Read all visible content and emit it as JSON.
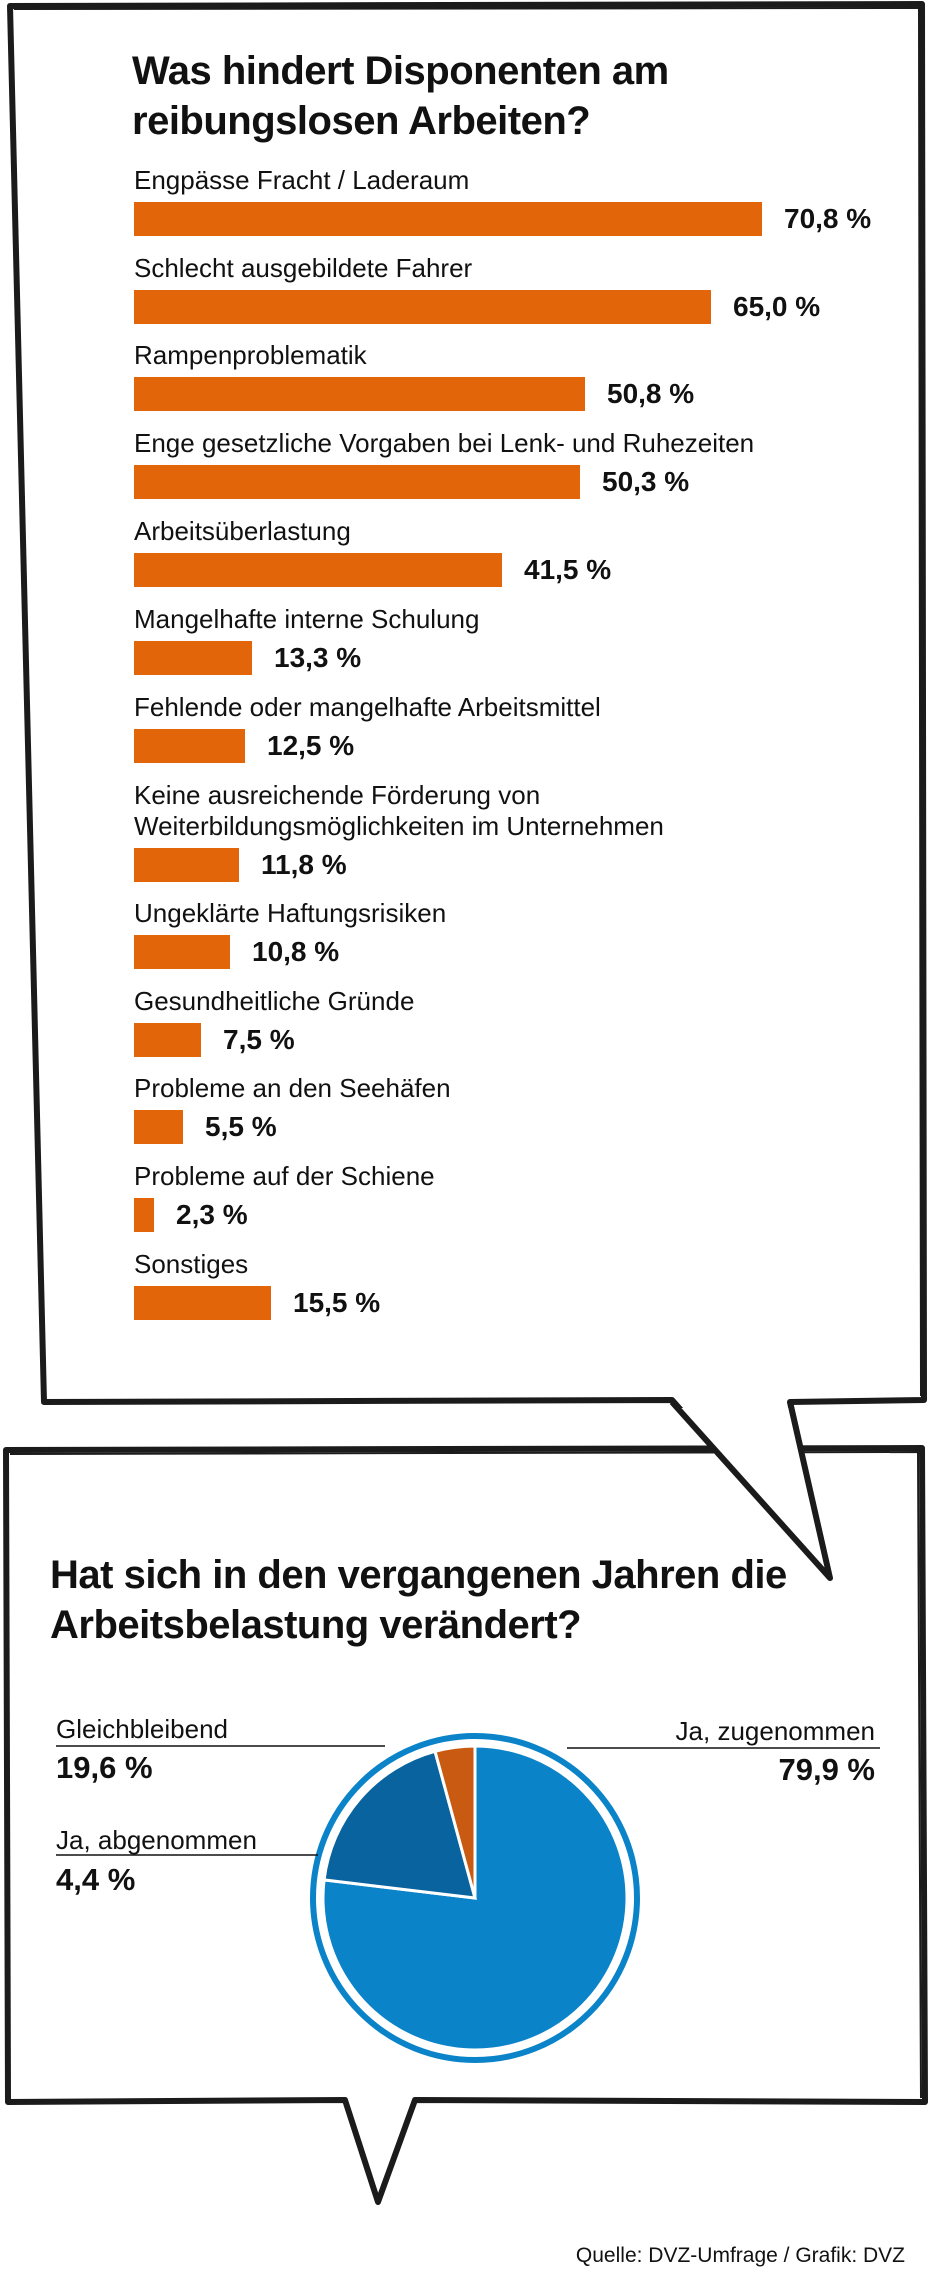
{
  "chart_data": [
    {
      "type": "bar",
      "orientation": "horizontal",
      "title": "Was hindert Disponenten am reibungslosen Arbeiten?",
      "unit": "%",
      "categories": [
        "Engpässe Fracht / Laderaum",
        "Schlecht ausgebildete Fahrer",
        "Rampenproblematik",
        "Enge gesetzliche Vorgaben bei Lenk- und Ruhezeiten",
        "Arbeitsüberlastung",
        "Mangelhafte interne Schulung",
        "Fehlende oder mangelhafte Arbeitsmittel",
        "Keine ausreichende Förderung von Weiterbildungsmöglichkeiten im Unternehmen",
        "Ungeklärte Haftungsrisiken",
        "Gesundheitliche Gründe",
        "Probleme an den Seehäfen",
        "Probleme auf der Schiene",
        "Sonstiges"
      ],
      "values": [
        70.8,
        65.0,
        50.8,
        50.3,
        41.5,
        13.3,
        12.5,
        11.8,
        10.8,
        7.5,
        5.5,
        2.3,
        15.5
      ],
      "value_labels": [
        "70,8 %",
        "65,0 %",
        "50,8 %",
        "50,3 %",
        "41,5 %",
        "13,3 %",
        "12,5 %",
        "11,8 %",
        "10,8 %",
        "7,5 %",
        "5,5 %",
        "2,3 %",
        "15,5 %"
      ],
      "colors": {
        "bar": "#e2650a"
      },
      "grid": false,
      "legend": "none"
    },
    {
      "type": "pie",
      "title": "Hat sich in den vergangenen Jahren die Arbeitsbelastung verändert?",
      "slices": [
        {
          "label": "Ja, zugenommen",
          "value": 79.9,
          "value_label": "79,9 %",
          "color": "#0a83c9"
        },
        {
          "label": "Gleichbleibend",
          "value": 19.6,
          "value_label": "19,6 %",
          "color": "#08639e"
        },
        {
          "label": "Ja, abgenommen",
          "value": 4.4,
          "value_label": "4,4 %",
          "color": "#c95a12"
        }
      ],
      "legend": "none"
    }
  ],
  "source": "Quelle: DVZ-Umfrage / Grafik: DVZ"
}
